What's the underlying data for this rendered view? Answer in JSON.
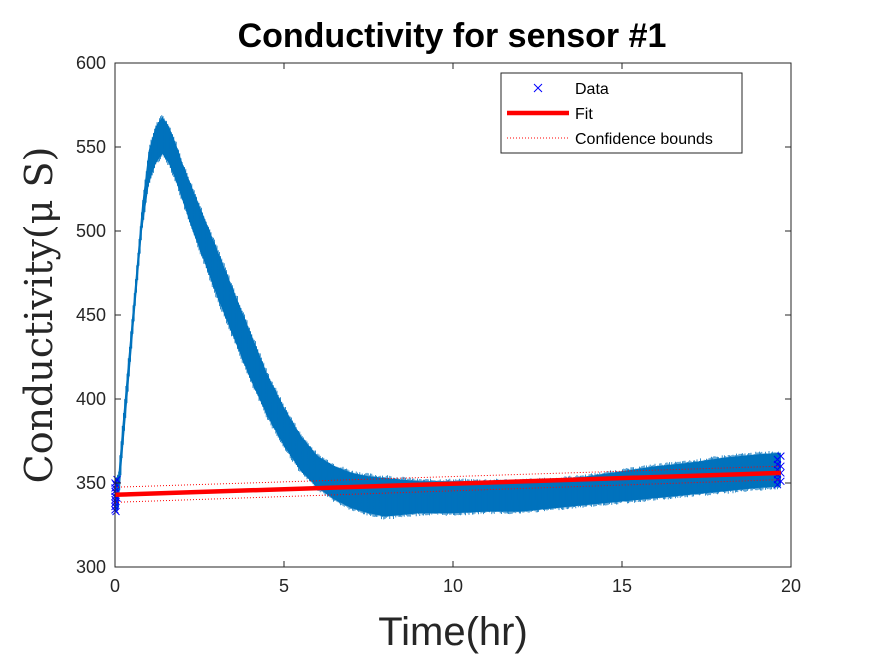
{
  "chart_data": {
    "type": "line",
    "title": "Conductivity for sensor #1",
    "xlabel": "Time(hr)",
    "ylabel": "Conductivity(μ S)",
    "xlim": [
      0,
      20
    ],
    "ylim": [
      300,
      600
    ],
    "xticks": [
      0,
      5,
      10,
      15,
      20
    ],
    "yticks": [
      300,
      350,
      400,
      450,
      500,
      550,
      600
    ],
    "grid": false,
    "legend_position": "top-right",
    "series": [
      {
        "name": "Data",
        "style": "band",
        "color": "#0072BD",
        "x": [
          0,
          0.1,
          0.2,
          0.4,
          0.6,
          0.8,
          1.0,
          1.2,
          1.4,
          1.6,
          1.8,
          2.0,
          2.3,
          2.6,
          3.0,
          3.5,
          4.0,
          4.5,
          5.0,
          5.5,
          6.0,
          6.5,
          7.0,
          7.5,
          8.0,
          8.5,
          9.0,
          10.0,
          11.0,
          12.0,
          13.0,
          14.0,
          15.0,
          16.0,
          17.0,
          18.0,
          19.0,
          19.7
        ],
        "upper": [
          352,
          355,
          380,
          425,
          470,
          515,
          548,
          562,
          568,
          562,
          552,
          540,
          525,
          510,
          490,
          465,
          440,
          415,
          395,
          378,
          366,
          360,
          356,
          354,
          353,
          352,
          351,
          351,
          351,
          351,
          352,
          354,
          357,
          360,
          362,
          365,
          367,
          368
        ],
        "lower": [
          332,
          335,
          362,
          408,
          455,
          500,
          528,
          540,
          546,
          540,
          530,
          518,
          500,
          484,
          462,
          437,
          412,
          390,
          372,
          357,
          347,
          340,
          335,
          332,
          330,
          331,
          332,
          332,
          333,
          333,
          335,
          337,
          339,
          341,
          343,
          345,
          347,
          348
        ]
      },
      {
        "name": "Data markers",
        "style": "marker",
        "color": "#0000FF",
        "x": [
          0,
          0,
          0,
          0,
          0,
          0,
          0,
          0,
          0.03,
          0.03,
          0.03,
          0.03,
          0.06,
          0.06,
          19.6,
          19.6,
          19.6,
          19.6,
          19.6,
          19.6,
          19.7,
          19.7,
          19.7,
          19.7
        ],
        "y": [
          334,
          336,
          338,
          340,
          342,
          345,
          347,
          350,
          333,
          339,
          344,
          349,
          341,
          352,
          349,
          352,
          355,
          358,
          361,
          364,
          351,
          356,
          360,
          366
        ]
      },
      {
        "name": "Fit",
        "style": "line",
        "color": "#FF0000",
        "x": [
          0,
          19.7
        ],
        "y": [
          343,
          356
        ]
      },
      {
        "name": "Confidence bounds",
        "style": "dotted",
        "color": "#FF0000",
        "x": [
          0,
          19.7
        ],
        "upper": [
          347.5,
          360
        ],
        "lower": [
          338.5,
          352
        ]
      }
    ],
    "legend": [
      {
        "label": "Data",
        "symbol": "cross",
        "color": "#0000FF"
      },
      {
        "label": "Fit",
        "symbol": "thick-line",
        "color": "#FF0000"
      },
      {
        "label": "Confidence bounds",
        "symbol": "dotted-line",
        "color": "#FF0000"
      }
    ]
  }
}
